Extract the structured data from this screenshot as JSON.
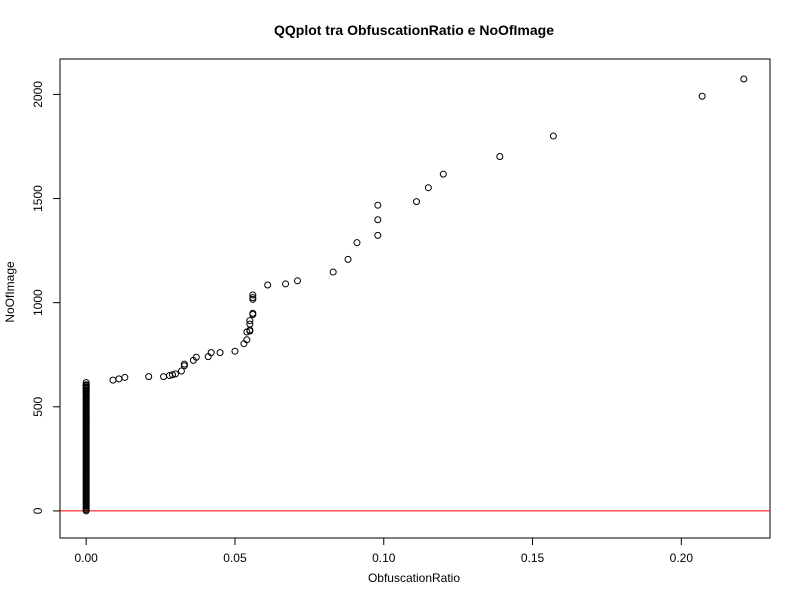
{
  "chart_data": {
    "type": "scatter",
    "title": "QQplot tra ObfuscationRatio e NoOfImage",
    "xlabel": "ObfuscationRatio",
    "ylabel": "NoOfImage",
    "xlim": [
      -0.0088,
      0.2298
    ],
    "ylim": [
      -130,
      2170
    ],
    "x_ticks": [
      0.0,
      0.05,
      0.1,
      0.15,
      0.2
    ],
    "x_tick_labels": [
      "0.00",
      "0.05",
      "0.10",
      "0.15",
      "0.20"
    ],
    "y_ticks": [
      0,
      500,
      1000,
      1500,
      2000
    ],
    "y_tick_labels": [
      "0",
      "500",
      "1000",
      "1500",
      "2000"
    ],
    "reference_line": {
      "y": 0,
      "color": "#ff0000"
    },
    "grid": false,
    "marker": "open-circle",
    "series": [
      {
        "cluster_at_zero": {
          "x": 0.0,
          "y_min": 0,
          "y_max": 610
        },
        "points": [
          [
            0.0,
            616
          ],
          [
            0.0,
            604
          ],
          [
            0.0,
            590
          ],
          [
            0.0,
            572
          ],
          [
            0.0,
            560
          ],
          [
            0.009,
            628
          ],
          [
            0.011,
            634
          ],
          [
            0.013,
            641
          ],
          [
            0.021,
            645
          ],
          [
            0.026,
            645
          ],
          [
            0.028,
            650
          ],
          [
            0.029,
            654
          ],
          [
            0.03,
            658
          ],
          [
            0.032,
            672
          ],
          [
            0.033,
            697
          ],
          [
            0.033,
            705
          ],
          [
            0.036,
            723
          ],
          [
            0.037,
            738
          ],
          [
            0.041,
            741
          ],
          [
            0.042,
            760
          ],
          [
            0.045,
            760
          ],
          [
            0.05,
            767
          ],
          [
            0.053,
            803
          ],
          [
            0.054,
            822
          ],
          [
            0.054,
            859
          ],
          [
            0.055,
            864
          ],
          [
            0.055,
            868
          ],
          [
            0.055,
            897
          ],
          [
            0.055,
            914
          ],
          [
            0.056,
            943
          ],
          [
            0.056,
            949
          ],
          [
            0.056,
            1016
          ],
          [
            0.056,
            1024
          ],
          [
            0.056,
            1037
          ],
          [
            0.061,
            1085
          ],
          [
            0.067,
            1090
          ],
          [
            0.071,
            1105
          ],
          [
            0.083,
            1147
          ],
          [
            0.088,
            1208
          ],
          [
            0.091,
            1288
          ],
          [
            0.098,
            1323
          ],
          [
            0.098,
            1398
          ],
          [
            0.098,
            1468
          ],
          [
            0.111,
            1485
          ],
          [
            0.115,
            1552
          ],
          [
            0.12,
            1617
          ],
          [
            0.139,
            1702
          ],
          [
            0.157,
            1800
          ],
          [
            0.207,
            1991
          ],
          [
            0.221,
            2074
          ]
        ]
      }
    ]
  }
}
